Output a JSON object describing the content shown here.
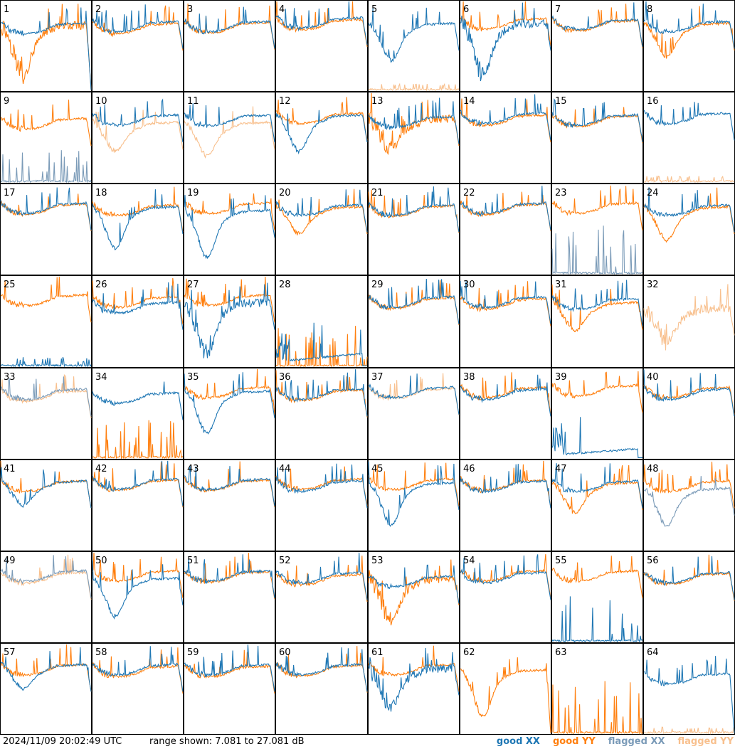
{
  "chart_data": {
    "type": "line",
    "grid": {
      "rows": 8,
      "cols": 8
    },
    "panels": [
      {
        "label": "1",
        "xx": {
          "shape": "flat",
          "level": 0.7,
          "q": "good",
          "drop": "low"
        },
        "yy": {
          "shape": "dip",
          "level": 0.68,
          "q": "good",
          "noise": "high",
          "depth": 0.45,
          "drop": "low"
        }
      },
      {
        "label": "2",
        "xx": {
          "shape": "flat",
          "level": 0.72,
          "q": "good"
        },
        "yy": {
          "shape": "flat",
          "level": 0.7,
          "q": "good"
        }
      },
      {
        "label": "3",
        "xx": {
          "shape": "flat",
          "level": 0.72,
          "q": "good"
        },
        "yy": {
          "shape": "flat",
          "level": 0.71,
          "q": "good"
        }
      },
      {
        "label": "4",
        "xx": {
          "shape": "flat",
          "level": 0.76,
          "q": "good"
        },
        "yy": {
          "shape": "flat",
          "level": 0.74,
          "q": "good"
        }
      },
      {
        "label": "5",
        "xx": {
          "shape": "dip",
          "level": 0.7,
          "q": "good",
          "depth": 0.3
        },
        "yy": {
          "shape": "spikes",
          "level": 0.02,
          "q": "flagged"
        }
      },
      {
        "label": "6",
        "xx": {
          "shape": "dip",
          "level": 0.7,
          "q": "good",
          "noise": "high",
          "depth": 0.45
        },
        "yy": {
          "shape": "flat",
          "level": 0.75,
          "q": "good"
        }
      },
      {
        "label": "7",
        "xx": {
          "shape": "flat",
          "level": 0.74,
          "q": "good"
        },
        "yy": {
          "shape": "flat",
          "level": 0.73,
          "q": "good"
        }
      },
      {
        "label": "8",
        "xx": {
          "shape": "flat",
          "level": 0.72,
          "q": "good"
        },
        "yy": {
          "shape": "dip",
          "level": 0.7,
          "q": "good",
          "depth": 0.25
        }
      },
      {
        "label": "9",
        "xx": {
          "shape": "spikes",
          "level": 0.3,
          "q": "flagged"
        },
        "yy": {
          "shape": "flat",
          "level": 0.66,
          "q": "good"
        }
      },
      {
        "label": "10",
        "xx": {
          "shape": "flat",
          "level": 0.7,
          "q": "good"
        },
        "yy": {
          "shape": "dip",
          "level": 0.62,
          "q": "flagged",
          "depth": 0.2
        }
      },
      {
        "label": "11",
        "xx": {
          "shape": "flat",
          "level": 0.7,
          "q": "good"
        },
        "yy": {
          "shape": "dip",
          "level": 0.62,
          "q": "flagged",
          "depth": 0.25
        }
      },
      {
        "label": "12",
        "xx": {
          "shape": "dip",
          "level": 0.7,
          "q": "good",
          "depth": 0.28
        },
        "yy": {
          "shape": "flat",
          "level": 0.72,
          "q": "good"
        }
      },
      {
        "label": "13",
        "xx": {
          "shape": "flat",
          "level": 0.68,
          "q": "good"
        },
        "yy": {
          "shape": "dip",
          "level": 0.66,
          "q": "good",
          "noise": "high",
          "depth": 0.2
        }
      },
      {
        "label": "14",
        "xx": {
          "shape": "flat",
          "level": 0.72,
          "q": "good"
        },
        "yy": {
          "shape": "flat",
          "level": 0.7,
          "q": "good"
        }
      },
      {
        "label": "15",
        "xx": {
          "shape": "flat",
          "level": 0.7,
          "q": "good"
        },
        "yy": {
          "shape": "flat",
          "level": 0.69,
          "q": "good"
        }
      },
      {
        "label": "16",
        "xx": {
          "shape": "flat",
          "level": 0.72,
          "q": "good"
        },
        "yy": {
          "shape": "spikes",
          "level": 0.02,
          "q": "flagged"
        }
      },
      {
        "label": "17",
        "xx": {
          "shape": "flat",
          "level": 0.74,
          "q": "good"
        },
        "yy": {
          "shape": "flat",
          "level": 0.73,
          "q": "good"
        }
      },
      {
        "label": "18",
        "xx": {
          "shape": "dip",
          "level": 0.7,
          "q": "good",
          "depth": 0.35
        },
        "yy": {
          "shape": "flat",
          "level": 0.72,
          "q": "good"
        }
      },
      {
        "label": "19",
        "xx": {
          "shape": "dip",
          "level": 0.66,
          "q": "good",
          "depth": 0.4
        },
        "yy": {
          "shape": "flat",
          "level": 0.74,
          "q": "good"
        }
      },
      {
        "label": "20",
        "xx": {
          "shape": "flat",
          "level": 0.72,
          "q": "good"
        },
        "yy": {
          "shape": "dip",
          "level": 0.7,
          "q": "good",
          "depth": 0.18
        }
      },
      {
        "label": "21",
        "xx": {
          "shape": "flat",
          "level": 0.72,
          "q": "good"
        },
        "yy": {
          "shape": "flat",
          "level": 0.71,
          "q": "good"
        }
      },
      {
        "label": "22",
        "xx": {
          "shape": "flat",
          "level": 0.74,
          "q": "good"
        },
        "yy": {
          "shape": "flat",
          "level": 0.73,
          "q": "good"
        }
      },
      {
        "label": "23",
        "xx": {
          "shape": "spikes",
          "level": 0.5,
          "q": "flagged"
        },
        "yy": {
          "shape": "flat",
          "level": 0.74,
          "q": "good"
        }
      },
      {
        "label": "24",
        "xx": {
          "shape": "flat",
          "level": 0.72,
          "q": "good"
        },
        "yy": {
          "shape": "dip",
          "level": 0.7,
          "q": "good",
          "depth": 0.25
        }
      },
      {
        "label": "25",
        "xx": {
          "shape": "spikes",
          "level": 0.05,
          "q": "good"
        },
        "yy": {
          "shape": "flat",
          "level": 0.74,
          "q": "good"
        }
      },
      {
        "label": "26",
        "xx": {
          "shape": "flat",
          "level": 0.66,
          "q": "good"
        },
        "yy": {
          "shape": "flat",
          "level": 0.72,
          "q": "good"
        }
      },
      {
        "label": "27",
        "xx": {
          "shape": "dip",
          "level": 0.66,
          "q": "good",
          "noise": "high",
          "depth": 0.45
        },
        "yy": {
          "shape": "flat",
          "level": 0.74,
          "q": "good"
        }
      },
      {
        "label": "28",
        "xx": {
          "shape": "low",
          "level": 0.16,
          "q": "good"
        },
        "yy": {
          "shape": "spikes",
          "level": 0.4,
          "q": "good"
        }
      },
      {
        "label": "29",
        "xx": {
          "shape": "flat",
          "level": 0.72,
          "q": "good"
        },
        "yy": {
          "shape": "flat",
          "level": 0.71,
          "q": "good"
        }
      },
      {
        "label": "30",
        "xx": {
          "shape": "flat",
          "level": 0.72,
          "q": "good"
        },
        "yy": {
          "shape": "flat",
          "level": 0.7,
          "q": "good"
        }
      },
      {
        "label": "31",
        "xx": {
          "shape": "flat",
          "level": 0.7,
          "q": "good"
        },
        "yy": {
          "shape": "dip",
          "level": 0.66,
          "q": "good",
          "depth": 0.2
        }
      },
      {
        "label": "32",
        "xx": {
          "shape": "none",
          "level": 0,
          "q": "good"
        },
        "yy": {
          "shape": "dip",
          "level": 0.6,
          "q": "flagged",
          "noise": "high",
          "depth": 0.25
        }
      },
      {
        "label": "33",
        "xx": {
          "shape": "flat",
          "level": 0.72,
          "q": "flagged"
        },
        "yy": {
          "shape": "flat",
          "level": 0.7,
          "q": "flagged"
        }
      },
      {
        "label": "34",
        "xx": {
          "shape": "flat",
          "level": 0.68,
          "q": "good"
        },
        "yy": {
          "shape": "spikes",
          "level": 0.4,
          "q": "good"
        }
      },
      {
        "label": "35",
        "xx": {
          "shape": "dip",
          "level": 0.7,
          "q": "good",
          "depth": 0.35
        },
        "yy": {
          "shape": "flat",
          "level": 0.74,
          "q": "good"
        }
      },
      {
        "label": "36",
        "xx": {
          "shape": "flat",
          "level": 0.72,
          "q": "good"
        },
        "yy": {
          "shape": "flat",
          "level": 0.71,
          "q": "good"
        }
      },
      {
        "label": "37",
        "xx": {
          "shape": "flat",
          "level": 0.74,
          "q": "good"
        },
        "yy": {
          "shape": "flat",
          "level": 0.73,
          "q": "flagged"
        }
      },
      {
        "label": "38",
        "xx": {
          "shape": "flat",
          "level": 0.72,
          "q": "good"
        },
        "yy": {
          "shape": "flat",
          "level": 0.74,
          "q": "good"
        }
      },
      {
        "label": "39",
        "xx": {
          "shape": "low",
          "level": 0.12,
          "q": "good"
        },
        "yy": {
          "shape": "flat",
          "level": 0.76,
          "q": "good"
        }
      },
      {
        "label": "40",
        "xx": {
          "shape": "flat",
          "level": 0.72,
          "q": "good"
        },
        "yy": {
          "shape": "flat",
          "level": 0.74,
          "q": "good"
        }
      },
      {
        "label": "41",
        "xx": {
          "shape": "dip",
          "level": 0.72,
          "q": "good",
          "depth": 0.15
        },
        "yy": {
          "shape": "flat",
          "level": 0.72,
          "q": "good"
        }
      },
      {
        "label": "42",
        "xx": {
          "shape": "flat",
          "level": 0.74,
          "q": "good"
        },
        "yy": {
          "shape": "flat",
          "level": 0.73,
          "q": "good"
        }
      },
      {
        "label": "43",
        "xx": {
          "shape": "flat",
          "level": 0.74,
          "q": "good"
        },
        "yy": {
          "shape": "flat",
          "level": 0.73,
          "q": "good"
        }
      },
      {
        "label": "44",
        "xx": {
          "shape": "flat",
          "level": 0.72,
          "q": "good"
        },
        "yy": {
          "shape": "flat",
          "level": 0.74,
          "q": "good"
        }
      },
      {
        "label": "45",
        "xx": {
          "shape": "dip",
          "level": 0.7,
          "q": "good",
          "depth": 0.35
        },
        "yy": {
          "shape": "flat",
          "level": 0.74,
          "q": "good"
        }
      },
      {
        "label": "46",
        "xx": {
          "shape": "flat",
          "level": 0.72,
          "q": "good"
        },
        "yy": {
          "shape": "flat",
          "level": 0.73,
          "q": "good"
        }
      },
      {
        "label": "47",
        "xx": {
          "shape": "flat",
          "level": 0.72,
          "q": "good"
        },
        "yy": {
          "shape": "dip",
          "level": 0.7,
          "q": "good",
          "depth": 0.22
        }
      },
      {
        "label": "48",
        "xx": {
          "shape": "dip",
          "level": 0.64,
          "q": "flagged",
          "depth": 0.3
        },
        "yy": {
          "shape": "flat",
          "level": 0.72,
          "q": "good"
        }
      },
      {
        "label": "49",
        "xx": {
          "shape": "flat",
          "level": 0.74,
          "q": "flagged"
        },
        "yy": {
          "shape": "flat",
          "level": 0.72,
          "q": "flagged"
        }
      },
      {
        "label": "50",
        "xx": {
          "shape": "dip",
          "level": 0.66,
          "q": "good",
          "depth": 0.3
        },
        "yy": {
          "shape": "flat",
          "level": 0.74,
          "q": "good"
        }
      },
      {
        "label": "51",
        "xx": {
          "shape": "flat",
          "level": 0.74,
          "q": "good"
        },
        "yy": {
          "shape": "flat",
          "level": 0.73,
          "q": "good"
        }
      },
      {
        "label": "52",
        "xx": {
          "shape": "flat",
          "level": 0.72,
          "q": "good"
        },
        "yy": {
          "shape": "flat",
          "level": 0.7,
          "q": "good"
        }
      },
      {
        "label": "53",
        "xx": {
          "shape": "flat",
          "level": 0.68,
          "q": "good"
        },
        "yy": {
          "shape": "dip",
          "level": 0.66,
          "q": "good",
          "noise": "high",
          "depth": 0.35
        }
      },
      {
        "label": "54",
        "xx": {
          "shape": "flat",
          "level": 0.72,
          "q": "good"
        },
        "yy": {
          "shape": "flat",
          "level": 0.74,
          "q": "good"
        }
      },
      {
        "label": "55",
        "xx": {
          "shape": "spikes",
          "level": 0.45,
          "q": "good"
        },
        "yy": {
          "shape": "flat",
          "level": 0.74,
          "q": "good"
        }
      },
      {
        "label": "56",
        "xx": {
          "shape": "flat",
          "level": 0.72,
          "q": "good"
        },
        "yy": {
          "shape": "flat",
          "level": 0.71,
          "q": "good"
        }
      },
      {
        "label": "57",
        "xx": {
          "shape": "dip",
          "level": 0.72,
          "q": "good",
          "depth": 0.15
        },
        "yy": {
          "shape": "flat",
          "level": 0.72,
          "q": "good"
        }
      },
      {
        "label": "58",
        "xx": {
          "shape": "flat",
          "level": 0.72,
          "q": "good"
        },
        "yy": {
          "shape": "flat",
          "level": 0.7,
          "q": "good"
        }
      },
      {
        "label": "59",
        "xx": {
          "shape": "flat",
          "level": 0.72,
          "q": "good"
        },
        "yy": {
          "shape": "flat",
          "level": 0.7,
          "q": "good"
        }
      },
      {
        "label": "60",
        "xx": {
          "shape": "flat",
          "level": 0.72,
          "q": "good"
        },
        "yy": {
          "shape": "flat",
          "level": 0.71,
          "q": "good"
        }
      },
      {
        "label": "61",
        "xx": {
          "shape": "dip",
          "level": 0.68,
          "q": "good",
          "noise": "high",
          "depth": 0.3
        },
        "yy": {
          "shape": "flat",
          "level": 0.72,
          "q": "good"
        }
      },
      {
        "label": "62",
        "xx": {
          "shape": "none",
          "level": 0,
          "q": "good"
        },
        "yy": {
          "shape": "dip",
          "level": 0.66,
          "q": "good",
          "depth": 0.4,
          "drop": "low"
        }
      },
      {
        "label": "63",
        "xx": {
          "shape": "none",
          "level": 0,
          "q": "good"
        },
        "yy": {
          "shape": "spikes",
          "level": 0.55,
          "q": "good"
        }
      },
      {
        "label": "64",
        "xx": {
          "shape": "flat",
          "level": 0.62,
          "q": "good",
          "drop": "low"
        },
        "yy": {
          "shape": "spikes",
          "level": 0.02,
          "q": "flagged"
        }
      }
    ],
    "colors": {
      "good_xx": "#1f77b4",
      "good_yy": "#ff7f0e",
      "flagged_xx": "#7b9bb8",
      "flagged_yy": "#f8c08e"
    },
    "legend": [
      {
        "key": "good_xx",
        "prefix": "good",
        "pol": "XX"
      },
      {
        "key": "good_yy",
        "prefix": "good",
        "pol": "YY"
      },
      {
        "key": "flagged_xx",
        "prefix": "flagged",
        "pol": "XX"
      },
      {
        "key": "flagged_yy",
        "prefix": "flagged",
        "pol": "YY"
      }
    ],
    "legend_placement": "bottom-right"
  },
  "footer": {
    "timestamp": "2024/11/09 20:02:49 UTC",
    "range_text": "range shown: 7.081 to 27.081 dB"
  }
}
